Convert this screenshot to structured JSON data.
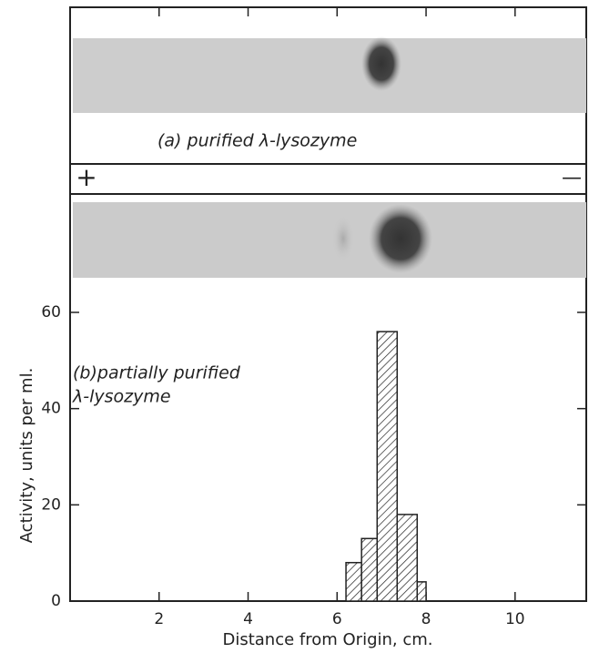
{
  "chart_data": {
    "type": "histogram",
    "annotations": {
      "panel_a": "(a) purified λ-lysozyme",
      "plus": "+",
      "minus": "—",
      "panel_b_line1": "(b)partially purified",
      "panel_b_line2": "λ-lysozyme"
    },
    "x_label": "Distance from Origin, cm.",
    "y_label": "Activity, units per ml.",
    "bins": [
      6.2,
      6.55,
      6.9,
      7.35,
      7.8,
      8.0
    ],
    "values": [
      8,
      13,
      56,
      18,
      4
    ],
    "color": "#222222",
    "xlim": [
      0,
      11.6
    ],
    "ylim": [
      0,
      60
    ],
    "xticks": [
      2,
      4,
      6,
      8,
      10
    ],
    "yticks": [
      0,
      20,
      40,
      60
    ]
  }
}
